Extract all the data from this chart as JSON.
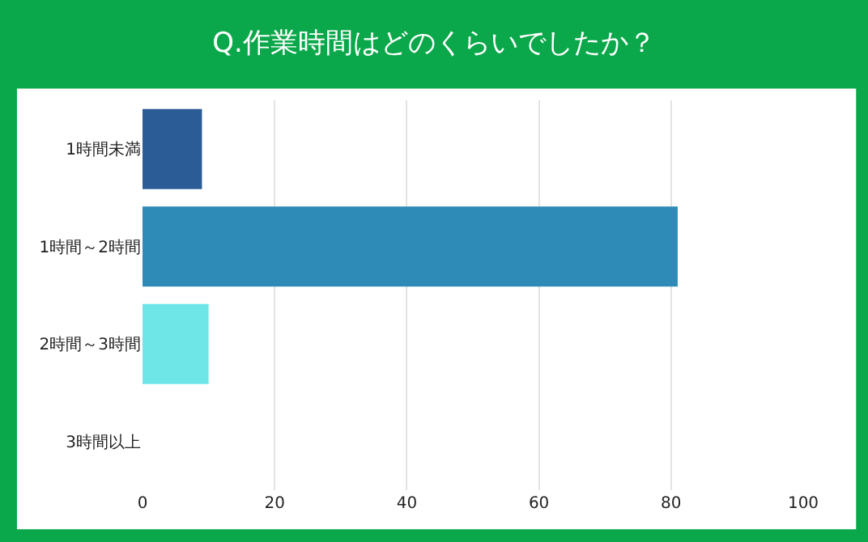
{
  "chart_data": {
    "type": "bar",
    "orientation": "horizontal",
    "title": "Q.作業時間はどのくらいでしたか？",
    "categories": [
      "1時間未満",
      "1時間～2時間",
      "2時間～3時間",
      "3時間以上"
    ],
    "values": [
      9,
      81,
      10,
      0
    ],
    "colors": [
      "#2c5c96",
      "#2e8bb8",
      "#6ee6e8",
      "#2e8bb8"
    ],
    "xlim": [
      0,
      100
    ],
    "xticks": [
      0,
      20,
      40,
      60,
      80,
      100
    ],
    "grid": "x",
    "legend": false
  }
}
